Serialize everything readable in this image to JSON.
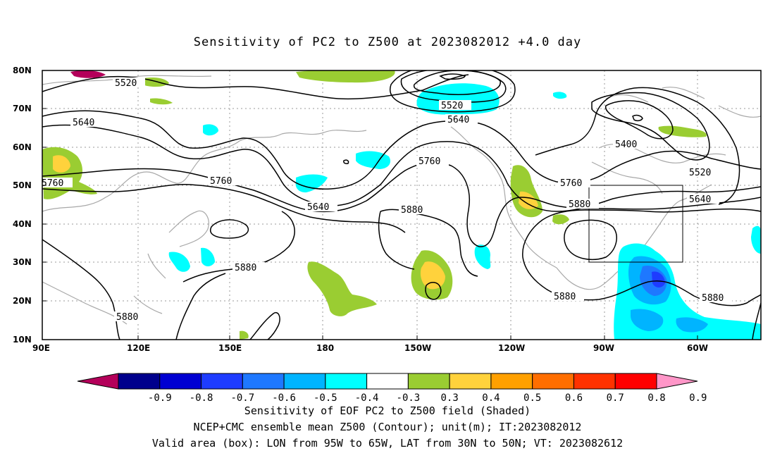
{
  "title": "Sensitivity of PC2 to Z500 at 2023082012 +4.0 day",
  "map": {
    "lat_labels": [
      "80N",
      "70N",
      "60N",
      "50N",
      "40N",
      "30N",
      "20N",
      "10N"
    ],
    "lon_labels": [
      "90E",
      "120E",
      "150E",
      "180",
      "150W",
      "120W",
      "90W",
      "60W"
    ],
    "contour_labels": [
      "5520",
      "5520",
      "5640",
      "5640",
      "5760",
      "5760",
      "5640",
      "5880",
      "5880",
      "5880",
      "5760",
      "5880",
      "5400",
      "5520",
      "5640",
      "5880",
      "5880"
    ],
    "valid_box": {
      "lon_from": "95W",
      "lon_to": "65W",
      "lat_from": "30N",
      "lat_to": "50N"
    }
  },
  "colorbar": {
    "ticks": [
      "-0.9",
      "-0.8",
      "-0.7",
      "-0.6",
      "-0.5",
      "-0.4",
      "-0.3",
      "0.3",
      "0.4",
      "0.5",
      "0.6",
      "0.7",
      "0.8",
      "0.9"
    ],
    "colors": [
      "#b4005a",
      "#00008c",
      "#0000d2",
      "#1e3cff",
      "#1e78ff",
      "#00b4ff",
      "#00ffff",
      "#ffffff",
      "#9acd32",
      "#ffd23c",
      "#ffa000",
      "#ff6e00",
      "#ff3200",
      "#ff0000",
      "#ff96c8"
    ]
  },
  "captions": {
    "line1": "Sensitivity of EOF PC2 to Z500 field (Shaded)",
    "line2": "NCEP+CMC ensemble mean Z500 (Contour); unit(m); IT:2023082012",
    "line3": "Valid area (box): LON from 95W to 65W, LAT from 30N to 50N; VT: 2023082612"
  }
}
